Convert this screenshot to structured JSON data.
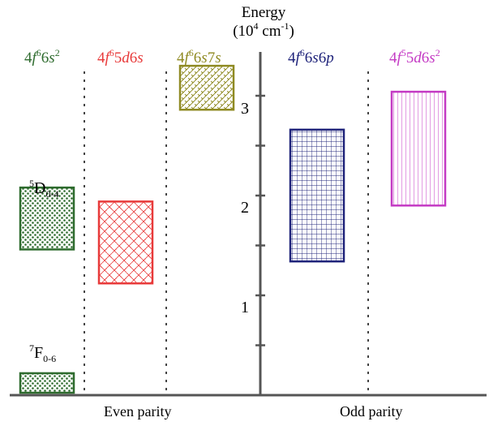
{
  "axis": {
    "title_line1": "Energy",
    "title_line2_base": "(10",
    "title_line2_exp": "4",
    "title_line2_unit": " cm",
    "title_line2_unit_exp": "-1",
    "title_line2_close": ")",
    "ticks": [
      "1",
      "2",
      "3"
    ]
  },
  "configs": [
    {
      "id": "c1",
      "pre": "4",
      "f": "f",
      "fexp": "6",
      "rest1": "6",
      "s": "s",
      "sexp": "2",
      "color": "#2e6b2e"
    },
    {
      "id": "c2",
      "pre": "4",
      "f": "f",
      "fexp": "6",
      "rest1": "5",
      "d": "d",
      "rest2": "6",
      "s": "s",
      "color": "#e83a3a"
    },
    {
      "id": "c3",
      "pre": "4",
      "f": "f",
      "fexp": "6",
      "rest1": "6",
      "s": "s",
      "rest2": "7",
      "s2": "s",
      "color": "#8f8a22"
    },
    {
      "id": "c4",
      "pre": "4",
      "f": "f",
      "fexp": "6",
      "rest1": "6",
      "s": "s",
      "rest2": "6",
      "p": "p",
      "color": "#1f237a"
    },
    {
      "id": "c5",
      "pre": "4",
      "f": "f",
      "fexp": "5",
      "rest1": "5",
      "d": "d",
      "rest2": "6",
      "s": "s",
      "sexp": "2",
      "color": "#c43ac4"
    }
  ],
  "terms": [
    {
      "sup": "5",
      "main": "D",
      "sub": "0-4"
    },
    {
      "sup": "7",
      "main": "F",
      "sub": "0-6"
    }
  ],
  "parity": {
    "even": "Even parity",
    "odd": "Odd parity"
  },
  "bands": [
    {
      "name": "7F",
      "low": 0.0,
      "high": 0.22,
      "color": "#2e6b2e"
    },
    {
      "name": "5D",
      "low": 1.46,
      "high": 2.08,
      "color": "#2e6b2e"
    },
    {
      "name": "4f65d6s",
      "low": 1.12,
      "high": 1.94,
      "color": "#e83a3a"
    },
    {
      "name": "4f66s7s",
      "low": 2.86,
      "high": 3.3,
      "color": "#8f8a22"
    },
    {
      "name": "4f66s6p",
      "low": 1.34,
      "high": 2.66,
      "color": "#1f237a"
    },
    {
      "name": "4f55d6s2",
      "low": 1.9,
      "high": 3.04,
      "color": "#c43ac4"
    }
  ]
}
